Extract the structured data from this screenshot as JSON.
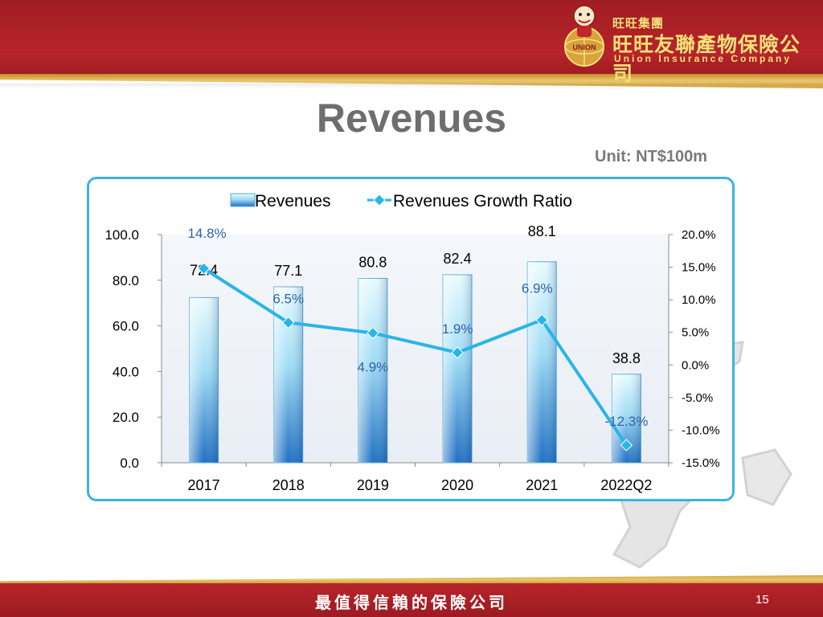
{
  "header": {
    "brand_group": "旺旺集團",
    "brand_company_cn": "旺旺友聯產物保險公司",
    "brand_company_en": "Union Insurance Company",
    "logo_text": "UNION"
  },
  "slide": {
    "title": "Revenues",
    "unit": "Unit: NT$100m"
  },
  "footer": {
    "slogan": "最值得信賴的保險公司",
    "page_number": "15"
  },
  "colors": {
    "brand_red": "#b7242a",
    "gold": "#e9c66a",
    "frame": "#39b4e6",
    "line": "#29b5e8",
    "growth_label": "#2f63a8"
  },
  "chart_data": {
    "type": "bar+line",
    "categories": [
      "2017",
      "2018",
      "2019",
      "2020",
      "2021",
      "2022Q2"
    ],
    "series": [
      {
        "name": "Revenues",
        "type": "bar",
        "axis": "left",
        "values": [
          72.4,
          77.1,
          80.8,
          82.4,
          88.1,
          38.8
        ],
        "labels": [
          "72.4",
          "77.1",
          "80.8",
          "82.4",
          "88.1",
          "38.8"
        ]
      },
      {
        "name": "Revenues Growth Ratio",
        "type": "line",
        "axis": "right",
        "values": [
          14.8,
          6.5,
          4.9,
          1.9,
          6.9,
          -12.3
        ],
        "labels": [
          "14.8%",
          "6.5%",
          "4.9%",
          "1.9%",
          "6.9%",
          "-12.3%"
        ]
      }
    ],
    "y_left": {
      "range": [
        0,
        100
      ],
      "ticks": [
        "0.0",
        "20.0",
        "40.0",
        "60.0",
        "80.0",
        "100.0"
      ]
    },
    "y_right": {
      "range": [
        -15,
        20
      ],
      "ticks": [
        "-15.0%",
        "-10.0%",
        "-5.0%",
        "0.0%",
        "5.0%",
        "10.0%",
        "15.0%",
        "20.0%"
      ]
    },
    "legend": "top-center",
    "grid": false
  }
}
